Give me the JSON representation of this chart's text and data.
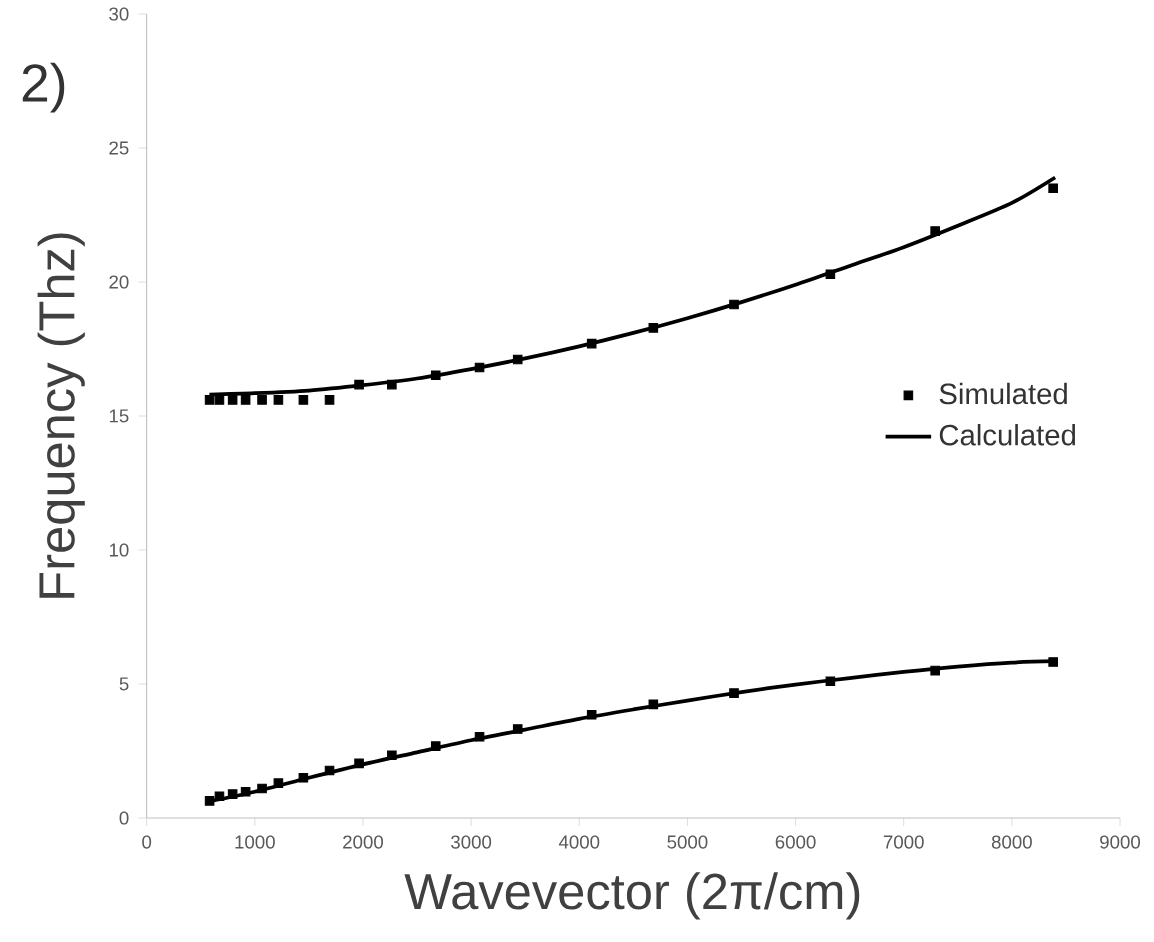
{
  "chart_data": {
    "type": "scatter",
    "xlabel": "Wavevector (2π/cm)",
    "ylabel": "Frequency (Thz)",
    "annotations": [
      "2)"
    ],
    "xlim": [
      0,
      9000
    ],
    "xticks": [
      0,
      1000,
      2000,
      3000,
      4000,
      5000,
      6000,
      7000,
      8000,
      9000
    ],
    "ylim": [
      0,
      30
    ],
    "yticks": [
      0,
      5,
      10,
      15,
      20,
      25,
      30
    ],
    "legend": "right",
    "series": [
      {
        "name": "Simulated",
        "marker": "square",
        "color": "#000000",
        "x": [
          582,
          673,
          795,
          915,
          1067,
          1218,
          1449,
          1691,
          1964,
          2267,
          2673,
          3078,
          3431,
          4115,
          4685,
          5431,
          6322,
          7291,
          8382
        ],
        "values": [
          15.6,
          15.6,
          15.6,
          15.6,
          15.6,
          15.6,
          15.6,
          15.6,
          16.17,
          16.17,
          16.52,
          16.81,
          17.11,
          17.7,
          18.29,
          19.16,
          20.29,
          21.9,
          23.5
        ]
      },
      {
        "marker": "square",
        "color": "#000000",
        "x": [
          582,
          673,
          795,
          915,
          1067,
          1218,
          1449,
          1691,
          1964,
          2267,
          2673,
          3078,
          3431,
          4115,
          4685,
          5431,
          6322,
          7291,
          8382
        ],
        "values": [
          0.64,
          0.81,
          0.89,
          0.98,
          1.1,
          1.3,
          1.5,
          1.77,
          2.04,
          2.34,
          2.68,
          3.03,
          3.32,
          3.85,
          4.24,
          4.66,
          5.1,
          5.5,
          5.82
        ]
      },
      {
        "name": "Calculated",
        "type": "line",
        "color": "#000000",
        "x": [
          580,
          1000,
          1500,
          2000,
          2500,
          3000,
          3500,
          4000,
          4500,
          5000,
          5500,
          6000,
          6500,
          7000,
          7500,
          8000,
          8400
        ],
        "values": [
          15.8,
          15.85,
          15.95,
          16.15,
          16.4,
          16.75,
          17.15,
          17.6,
          18.1,
          18.65,
          19.25,
          19.9,
          20.6,
          21.3,
          22.1,
          22.95,
          23.9
        ]
      },
      {
        "type": "line",
        "color": "#000000",
        "x": [
          580,
          1000,
          1500,
          2000,
          2500,
          3000,
          3500,
          4000,
          4500,
          5000,
          5500,
          6000,
          6500,
          7000,
          7500,
          8000,
          8400
        ],
        "values": [
          0.62,
          0.98,
          1.5,
          2.0,
          2.45,
          2.9,
          3.3,
          3.7,
          4.05,
          4.38,
          4.7,
          4.98,
          5.22,
          5.45,
          5.65,
          5.8,
          5.85
        ]
      }
    ]
  }
}
